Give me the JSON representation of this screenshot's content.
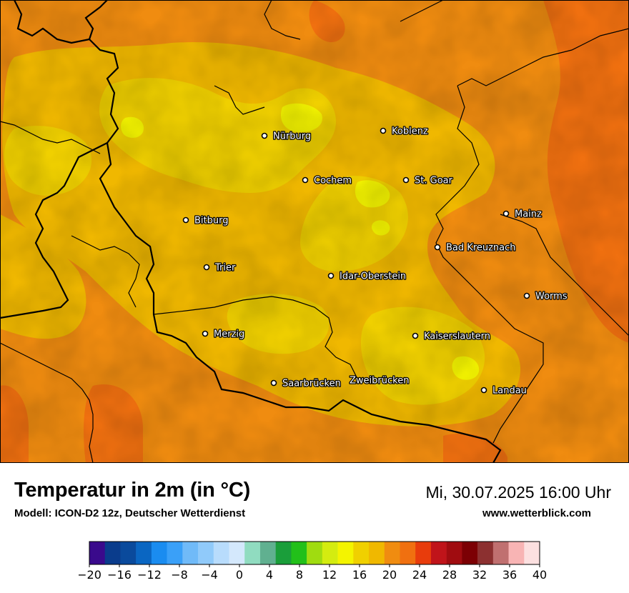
{
  "map": {
    "cities": [
      {
        "name": "Nürburg"
      },
      {
        "name": "Koblenz"
      },
      {
        "name": "Cochem"
      },
      {
        "name": "St. Goar"
      },
      {
        "name": "Bitburg"
      },
      {
        "name": "Mainz"
      },
      {
        "name": "Bad Kreuznach"
      },
      {
        "name": "Trier"
      },
      {
        "name": "Idar-Oberstein"
      },
      {
        "name": "Worms"
      },
      {
        "name": "Merzig"
      },
      {
        "name": "Kaiserslautern"
      },
      {
        "name": "Saarbrücken"
      },
      {
        "name": "Zweibrücken"
      },
      {
        "name": "Landau"
      }
    ]
  },
  "header": {
    "title": "Temperatur in 2m (in °C)",
    "model": "Modell: ICON-D2 12z, Deutscher Wetterdienst",
    "datetime": "Mi, 30.07.2025 16:00 Uhr",
    "website": "www.wetterblick.com"
  },
  "legend": {
    "ticks": [
      "−20",
      "−16",
      "−12",
      "−8",
      "−4",
      "0",
      "4",
      "8",
      "12",
      "16",
      "20",
      "24",
      "28",
      "32",
      "36",
      "40"
    ],
    "colors": [
      "#3a0a8c",
      "#0a3c8c",
      "#0a4a9c",
      "#0a66c2",
      "#1a8cf0",
      "#3aa0f8",
      "#70baf8",
      "#90cafa",
      "#b8dcfc",
      "#d4e8fc",
      "#90dcc0",
      "#60b090",
      "#1a9e3a",
      "#22c01a",
      "#a0dc10",
      "#d4ec10",
      "#f4f400",
      "#f0d000",
      "#f0b800",
      "#f08c10",
      "#f07010",
      "#e83c0c",
      "#c0141a",
      "#a00c10",
      "#7c0004",
      "#8c3030",
      "#c07070",
      "#f8b4b4",
      "#fce0e0"
    ]
  }
}
